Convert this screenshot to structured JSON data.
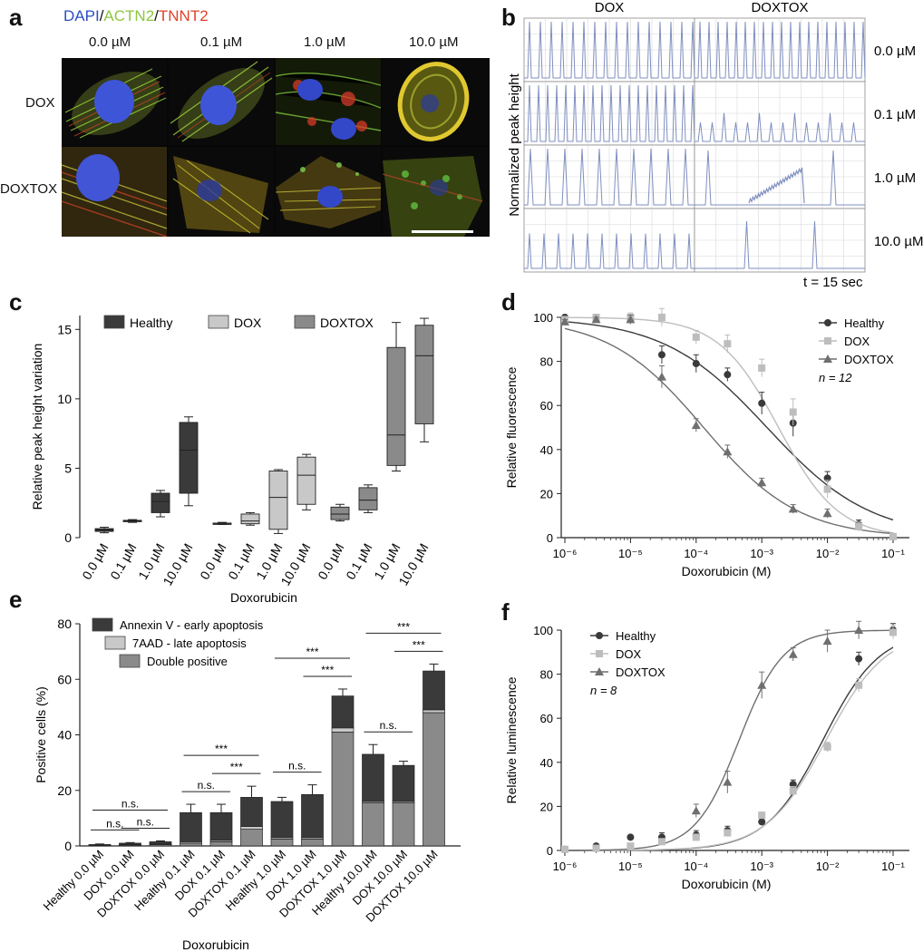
{
  "panel_labels": {
    "a": "a",
    "b": "b",
    "c": "c",
    "d": "d",
    "e": "e",
    "f": "f"
  },
  "panel_a": {
    "stain": {
      "dapi": "DAPI",
      "actn2": "ACTN2",
      "tnnt2": "TNNT2",
      "sep": "/",
      "dapi_color": "#2b4fc4",
      "actn2_color": "#8ec63f",
      "tnnt2_color": "#e0412a"
    },
    "concentrations": [
      "0.0 µM",
      "0.1 µM",
      "1.0 µM",
      "10.0 µM"
    ],
    "rows": [
      "DOX",
      "DOXTOX"
    ],
    "scale_bar": true
  },
  "panel_b": {
    "columns": [
      "DOX",
      "DOXTOX"
    ],
    "rows": [
      "0.0 µM",
      "0.1 µM",
      "1.0 µM",
      "10.0 µM"
    ],
    "ylabel": "Normalized peak height",
    "time_note": "t = 15 sec",
    "trace_color": "#7f8fc0"
  },
  "chart_data": [
    {
      "id": "c",
      "type": "box",
      "ylabel": "Relative peak height variation",
      "xlabel": "Doxorubicin",
      "ylim": [
        0,
        16
      ],
      "yticks": [
        0,
        5,
        10,
        15
      ],
      "legend": [
        "Healthy",
        "DOX",
        "DOXTOX"
      ],
      "legend_placement": "top",
      "colors": {
        "Healthy": "#3a3a3a",
        "DOX": "#c8c8c8",
        "DOXTOX": "#8a8a8a"
      },
      "categories": [
        "0.0 µM",
        "0.1 µM",
        "1.0 µM",
        "10.0 µM"
      ],
      "series": [
        {
          "name": "Healthy",
          "boxes": [
            {
              "min": 0.35,
              "q1": 0.45,
              "median": 0.55,
              "q3": 0.65,
              "max": 0.75
            },
            {
              "min": 1.1,
              "q1": 1.15,
              "median": 1.2,
              "q3": 1.25,
              "max": 1.3
            },
            {
              "min": 1.5,
              "q1": 1.8,
              "median": 2.6,
              "q3": 3.2,
              "max": 3.4
            },
            {
              "min": 2.3,
              "q1": 3.2,
              "median": 6.3,
              "q3": 8.3,
              "max": 8.7
            }
          ]
        },
        {
          "name": "DOX",
          "boxes": [
            {
              "min": 0.95,
              "q1": 0.98,
              "median": 1.0,
              "q3": 1.05,
              "max": 1.1
            },
            {
              "min": 0.9,
              "q1": 1.0,
              "median": 1.2,
              "q3": 1.7,
              "max": 1.8
            },
            {
              "min": 0.3,
              "q1": 0.6,
              "median": 2.9,
              "q3": 4.8,
              "max": 4.9
            },
            {
              "min": 2.0,
              "q1": 2.4,
              "median": 4.5,
              "q3": 5.8,
              "max": 6.0
            }
          ]
        },
        {
          "name": "DOXTOX",
          "boxes": [
            {
              "min": 1.2,
              "q1": 1.3,
              "median": 1.7,
              "q3": 2.2,
              "max": 2.4
            },
            {
              "min": 1.8,
              "q1": 2.0,
              "median": 2.7,
              "q3": 3.6,
              "max": 3.8
            },
            {
              "min": 4.8,
              "q1": 5.2,
              "median": 7.4,
              "q3": 13.7,
              "max": 15.5
            },
            {
              "min": 6.9,
              "q1": 8.2,
              "median": 13.1,
              "q3": 15.3,
              "max": 15.8
            }
          ]
        }
      ]
    },
    {
      "id": "d",
      "type": "scatter",
      "ylabel": "Relative fluorescence",
      "xlabel": "Doxorubicin (M)",
      "xscale": "log",
      "xlim": [
        1e-06,
        0.1
      ],
      "ylim": [
        0,
        100
      ],
      "yticks": [
        0,
        20,
        40,
        60,
        80,
        100
      ],
      "xticks": [
        "10⁻⁶",
        "10⁻⁵",
        "10⁻⁴",
        "10⁻³",
        "10⁻²",
        "10⁻¹"
      ],
      "legend_placement": "top-right",
      "n_label": "n = 12",
      "series": [
        {
          "name": "Healthy",
          "marker": "circle",
          "color": "#3a3a3a",
          "x": [
            1e-06,
            3e-06,
            1e-05,
            3e-05,
            0.0001,
            0.0003,
            0.001,
            0.003,
            0.01,
            0.03,
            0.1
          ],
          "y": [
            100,
            100,
            99,
            83,
            79,
            74,
            61,
            52,
            27,
            6,
            0.5
          ],
          "err": [
            1,
            1,
            2,
            4,
            4,
            3,
            5,
            6,
            3,
            2,
            1
          ],
          "fit": {
            "top": 100,
            "bottom": 0,
            "ec50": 0.0012,
            "hill": 0.55
          }
        },
        {
          "name": "DOX",
          "marker": "square",
          "color": "#bdbdbd",
          "x": [
            1e-06,
            3e-06,
            1e-05,
            3e-05,
            0.0001,
            0.0003,
            0.001,
            0.003,
            0.01,
            0.03,
            0.1
          ],
          "y": [
            99,
            100,
            100,
            100,
            91,
            88,
            77,
            57,
            22,
            5,
            0.5
          ],
          "err": [
            1,
            1,
            2,
            4,
            3,
            4,
            4,
            6,
            4,
            2,
            1
          ],
          "fit": {
            "top": 100,
            "bottom": 0,
            "ec50": 0.0018,
            "hill": 0.95
          }
        },
        {
          "name": "DOXTOX",
          "marker": "triangle",
          "color": "#6f6f6f",
          "x": [
            1e-06,
            3e-06,
            1e-05,
            3e-05,
            0.0001,
            0.0003,
            0.001,
            0.003,
            0.01
          ],
          "y": [
            98,
            99,
            99,
            73,
            51,
            39,
            25,
            13,
            11
          ],
          "err": [
            1,
            1,
            2,
            5,
            3,
            3,
            2,
            2,
            2
          ],
          "fit": {
            "top": 100,
            "bottom": 0,
            "ec50": 0.00013,
            "hill": 0.6
          }
        }
      ]
    },
    {
      "id": "e",
      "type": "bar",
      "stacked": true,
      "ylabel": "Positive cells (%)",
      "xlabel": "Doxorubicin",
      "ylim": [
        0,
        80
      ],
      "yticks": [
        0,
        20,
        40,
        60,
        80
      ],
      "legend_placement": "top-left",
      "categories": [
        "Healthy 0.0 µM",
        "DOX 0.0 µM",
        "DOXTOX 0.0 µM",
        "Healthy 0.1 µM",
        "DOX 0.1 µM",
        "DOXTOX 0.1 µM",
        "Healthy 1.0 µM",
        "DOX 1.0 µM",
        "DOXTOX 1.0 µM",
        "Healthy 10.0 µM",
        "DOX 10.0 µM",
        "DOXTOX 10.0 µM"
      ],
      "series": [
        {
          "name": "Double positive",
          "color": "#8a8a8a",
          "values": [
            0.2,
            0.3,
            0.5,
            1.0,
            1.5,
            6.0,
            2.5,
            2.5,
            41,
            15.5,
            15.5,
            48
          ]
        },
        {
          "name": "7AAD - late apoptosis",
          "color": "#c8c8c8",
          "values": [
            0.1,
            0.2,
            0.2,
            0.5,
            0.5,
            1.0,
            0.5,
            0.5,
            1.5,
            0.5,
            0.5,
            1.0
          ]
        },
        {
          "name": "Annexin V - early apoptosis",
          "color": "#3a3a3a",
          "values": [
            0.2,
            0.5,
            0.8,
            10.5,
            10.0,
            10.5,
            13.0,
            15.5,
            11.5,
            17.0,
            13.0,
            14.0
          ]
        }
      ],
      "totals": [
        0.5,
        1.0,
        1.5,
        12.0,
        12.0,
        17.5,
        16.0,
        18.5,
        54.0,
        33.0,
        29.0,
        63.0
      ],
      "err": [
        0.2,
        0.2,
        0.3,
        3,
        3,
        4,
        1.5,
        3.5,
        2.5,
        3.5,
        1.5,
        2.5
      ],
      "annotations": [
        {
          "text": "n.s.",
          "from": 0,
          "to": 2,
          "level": 2
        },
        {
          "text": "n.s.",
          "from": 0,
          "to": 1,
          "level": 1
        },
        {
          "text": "n.s.",
          "from": 1,
          "to": 2,
          "level": 1
        },
        {
          "text": "***",
          "from": 3,
          "to": 5,
          "level": 2
        },
        {
          "text": "n.s.",
          "from": 3,
          "to": 4,
          "level": 1
        },
        {
          "text": "***",
          "from": 4,
          "to": 5,
          "level": 1
        },
        {
          "text": "***",
          "from": 6,
          "to": 8,
          "level": 2
        },
        {
          "text": "n.s.",
          "from": 6,
          "to": 7,
          "level": 1
        },
        {
          "text": "***",
          "from": 7,
          "to": 8,
          "level": 1
        },
        {
          "text": "***",
          "from": 9,
          "to": 11,
          "level": 2
        },
        {
          "text": "n.s.",
          "from": 9,
          "to": 10,
          "level": 1
        },
        {
          "text": "***",
          "from": 10,
          "to": 11,
          "level": 1
        }
      ]
    },
    {
      "id": "f",
      "type": "scatter",
      "ylabel": "Relative luminescence",
      "xlabel": "Doxorubicin (M)",
      "xscale": "log",
      "xlim": [
        1e-06,
        0.1
      ],
      "ylim": [
        0,
        100
      ],
      "yticks": [
        0,
        20,
        40,
        60,
        80,
        100
      ],
      "xticks": [
        "10⁻⁶",
        "10⁻⁵",
        "10⁻⁴",
        "10⁻³",
        "10⁻²",
        "10⁻¹"
      ],
      "legend_placement": "top-left",
      "n_label": "n = 8",
      "series": [
        {
          "name": "Healthy",
          "marker": "circle",
          "color": "#3a3a3a",
          "x": [
            1e-06,
            3e-06,
            1e-05,
            3e-05,
            0.0001,
            0.0003,
            0.001,
            0.003,
            0.01,
            0.03,
            0.1
          ],
          "y": [
            0.5,
            2,
            6,
            6,
            7,
            9,
            13,
            30,
            47,
            87,
            100
          ],
          "err": [
            0.5,
            1,
            1,
            2,
            2,
            2,
            1,
            2,
            2,
            3,
            3
          ],
          "fit": {
            "bottom": 0,
            "top": 100,
            "ec50": 0.0085,
            "hill": 1.0
          }
        },
        {
          "name": "DOX",
          "marker": "square",
          "color": "#bdbdbd",
          "x": [
            1e-06,
            3e-06,
            1e-05,
            3e-05,
            0.0001,
            0.0003,
            0.001,
            0.003,
            0.01,
            0.03,
            0.1
          ],
          "y": [
            0.5,
            1,
            2,
            4,
            6,
            8,
            16,
            27,
            47,
            75,
            99
          ],
          "err": [
            0.5,
            1,
            1,
            1,
            1,
            1,
            1,
            2,
            2,
            3,
            3
          ],
          "fit": {
            "bottom": 0,
            "top": 100,
            "ec50": 0.0095,
            "hill": 0.95
          }
        },
        {
          "name": "DOXTOX",
          "marker": "triangle",
          "color": "#6f6f6f",
          "x": [
            0.0001,
            0.0003,
            0.001,
            0.003,
            0.01,
            0.03
          ],
          "y": [
            18,
            31,
            75,
            89,
            95,
            100
          ],
          "err": [
            3,
            5,
            6,
            3,
            5,
            4
          ],
          "fit": {
            "bottom": 0,
            "top": 100,
            "ec50": 0.00045,
            "hill": 1.3
          }
        }
      ]
    }
  ]
}
